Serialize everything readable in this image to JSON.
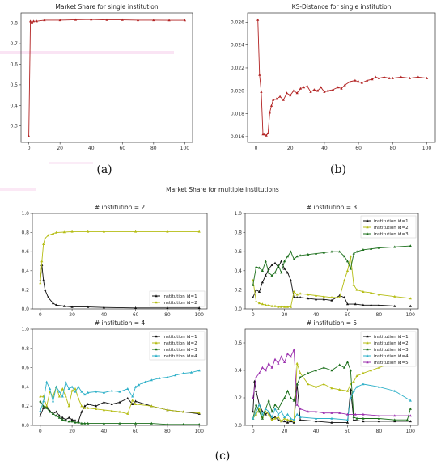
{
  "captions": {
    "a": "(a)",
    "b": "(b)",
    "c": "(c)"
  },
  "section_title": "Market Share for multiple institutions",
  "chart_data": [
    {
      "id": "a",
      "type": "line",
      "title": "Market Share for single institution",
      "xlim": [
        -5,
        105
      ],
      "ylim": [
        0.22,
        0.85
      ],
      "xticks": [
        0,
        20,
        40,
        60,
        80,
        100
      ],
      "yticks": [
        0.3,
        0.4,
        0.5,
        0.6,
        0.7,
        0.8
      ],
      "tick_decimals": 1,
      "series": [
        {
          "color": "#b22222",
          "x": [
            0,
            1,
            2,
            3,
            5,
            10,
            20,
            30,
            40,
            50,
            60,
            70,
            80,
            90,
            100
          ],
          "y": [
            0.25,
            0.81,
            0.8,
            0.81,
            0.81,
            0.815,
            0.815,
            0.817,
            0.818,
            0.816,
            0.816,
            0.815,
            0.815,
            0.814,
            0.814
          ]
        }
      ]
    },
    {
      "id": "b",
      "type": "line",
      "title": "KS-Distance for single institution",
      "xlim": [
        -5,
        105
      ],
      "ylim": [
        0.0155,
        0.0268
      ],
      "xticks": [
        0,
        20,
        40,
        60,
        80,
        100
      ],
      "yticks": [
        0.016,
        0.018,
        0.02,
        0.022,
        0.024,
        0.026
      ],
      "tick_decimals": 3,
      "series": [
        {
          "color": "#b22222",
          "x": [
            1,
            2,
            3,
            4,
            5,
            6,
            7,
            8,
            9,
            10,
            12,
            14,
            16,
            18,
            20,
            22,
            24,
            26,
            28,
            30,
            32,
            34,
            36,
            38,
            40,
            42,
            45,
            48,
            50,
            52,
            55,
            58,
            60,
            62,
            65,
            68,
            70,
            72,
            75,
            78,
            80,
            85,
            90,
            95,
            100
          ],
          "y": [
            0.0262,
            0.0214,
            0.0199,
            0.0162,
            0.0162,
            0.0161,
            0.0163,
            0.0181,
            0.0187,
            0.0192,
            0.0193,
            0.0195,
            0.0192,
            0.0198,
            0.0196,
            0.02,
            0.0198,
            0.0202,
            0.0203,
            0.0204,
            0.0199,
            0.0201,
            0.02,
            0.0203,
            0.0199,
            0.02,
            0.0201,
            0.0203,
            0.0202,
            0.0205,
            0.0208,
            0.0209,
            0.0208,
            0.0207,
            0.0209,
            0.021,
            0.0212,
            0.0211,
            0.0212,
            0.0211,
            0.0211,
            0.0212,
            0.0211,
            0.0212,
            0.0211
          ]
        }
      ]
    },
    {
      "id": "c1",
      "type": "line",
      "title": "# institution = 2",
      "xlim": [
        -5,
        105
      ],
      "ylim": [
        0,
        1.0
      ],
      "xticks": [
        0,
        20,
        40,
        60,
        80,
        100
      ],
      "yticks": [
        0.0,
        0.2,
        0.4,
        0.6,
        0.8,
        1.0
      ],
      "tick_decimals": 1,
      "legend": "lower-right",
      "series": [
        {
          "name": "institution id=1",
          "color": "#111111",
          "x": [
            0,
            1,
            2,
            3,
            5,
            8,
            10,
            15,
            20,
            30,
            40,
            60,
            80,
            100
          ],
          "y": [
            0.3,
            0.46,
            0.3,
            0.2,
            0.12,
            0.06,
            0.04,
            0.03,
            0.02,
            0.02,
            0.015,
            0.01,
            0.01,
            0.01
          ]
        },
        {
          "name": "institution id=2",
          "color": "#b5bd14",
          "x": [
            0,
            1,
            2,
            3,
            5,
            8,
            10,
            15,
            20,
            30,
            40,
            60,
            80,
            100
          ],
          "y": [
            0.27,
            0.5,
            0.68,
            0.74,
            0.77,
            0.79,
            0.8,
            0.805,
            0.81,
            0.81,
            0.81,
            0.81,
            0.81,
            0.81
          ]
        }
      ]
    },
    {
      "id": "c2",
      "type": "line",
      "title": "# institution = 3",
      "xlim": [
        -5,
        105
      ],
      "ylim": [
        0,
        1.0
      ],
      "xticks": [
        0,
        20,
        40,
        60,
        80,
        100
      ],
      "yticks": [
        0.0,
        0.2,
        0.4,
        0.6,
        0.8,
        1.0
      ],
      "tick_decimals": 1,
      "legend": "top-right",
      "series": [
        {
          "name": "institution id=1",
          "color": "#111111",
          "x": [
            0,
            2,
            4,
            6,
            8,
            10,
            12,
            14,
            16,
            18,
            20,
            22,
            24,
            26,
            28,
            30,
            35,
            40,
            45,
            50,
            55,
            58,
            60,
            65,
            70,
            75,
            80,
            90,
            100
          ],
          "y": [
            0.12,
            0.2,
            0.18,
            0.28,
            0.35,
            0.42,
            0.46,
            0.48,
            0.44,
            0.5,
            0.42,
            0.38,
            0.3,
            0.12,
            0.12,
            0.12,
            0.11,
            0.1,
            0.1,
            0.09,
            0.14,
            0.12,
            0.05,
            0.05,
            0.04,
            0.04,
            0.04,
            0.03,
            0.03
          ]
        },
        {
          "name": "institution id=2",
          "color": "#b5bd14",
          "x": [
            0,
            2,
            4,
            6,
            8,
            10,
            12,
            14,
            16,
            18,
            20,
            22,
            24,
            26,
            28,
            30,
            35,
            40,
            45,
            50,
            55,
            58,
            60,
            62,
            64,
            66,
            70,
            75,
            80,
            90,
            100
          ],
          "y": [
            0.3,
            0.08,
            0.06,
            0.05,
            0.04,
            0.04,
            0.03,
            0.03,
            0.02,
            0.02,
            0.02,
            0.02,
            0.02,
            0.18,
            0.15,
            0.16,
            0.15,
            0.14,
            0.13,
            0.12,
            0.12,
            0.3,
            0.4,
            0.55,
            0.25,
            0.2,
            0.18,
            0.17,
            0.15,
            0.13,
            0.11
          ]
        },
        {
          "name": "institution id=3",
          "color": "#1a6e1a",
          "x": [
            0,
            2,
            4,
            6,
            8,
            10,
            12,
            14,
            16,
            18,
            20,
            22,
            24,
            26,
            28,
            30,
            35,
            40,
            45,
            50,
            55,
            58,
            60,
            62,
            64,
            66,
            70,
            75,
            80,
            90,
            100
          ],
          "y": [
            0.25,
            0.44,
            0.43,
            0.4,
            0.5,
            0.38,
            0.35,
            0.38,
            0.46,
            0.38,
            0.5,
            0.55,
            0.6,
            0.52,
            0.55,
            0.56,
            0.57,
            0.58,
            0.59,
            0.6,
            0.6,
            0.55,
            0.5,
            0.42,
            0.58,
            0.6,
            0.62,
            0.63,
            0.64,
            0.65,
            0.66
          ]
        }
      ]
    },
    {
      "id": "c3",
      "type": "line",
      "title": "# institution = 4",
      "xlim": [
        -5,
        105
      ],
      "ylim": [
        0,
        1.0
      ],
      "xticks": [
        0,
        20,
        40,
        60,
        80,
        100
      ],
      "yticks": [
        0.0,
        0.2,
        0.4,
        0.6,
        0.8,
        1.0
      ],
      "tick_decimals": 1,
      "legend": "top-right",
      "series": [
        {
          "name": "institution id=1",
          "color": "#111111",
          "x": [
            0,
            2,
            4,
            6,
            8,
            10,
            12,
            14,
            16,
            18,
            20,
            22,
            24,
            26,
            28,
            30,
            35,
            40,
            45,
            50,
            55,
            58,
            60,
            70,
            80,
            90,
            100
          ],
          "y": [
            0.1,
            0.18,
            0.2,
            0.15,
            0.12,
            0.14,
            0.1,
            0.08,
            0.06,
            0.08,
            0.06,
            0.05,
            0.04,
            0.14,
            0.2,
            0.22,
            0.2,
            0.24,
            0.22,
            0.24,
            0.28,
            0.22,
            0.25,
            0.2,
            0.16,
            0.14,
            0.12
          ]
        },
        {
          "name": "institution id=2",
          "color": "#b5bd14",
          "x": [
            0,
            2,
            4,
            6,
            8,
            10,
            12,
            14,
            16,
            18,
            20,
            22,
            24,
            26,
            28,
            30,
            35,
            40,
            45,
            50,
            55,
            58,
            60,
            70,
            80,
            90,
            100
          ],
          "y": [
            0.3,
            0.3,
            0.2,
            0.35,
            0.3,
            0.4,
            0.3,
            0.38,
            0.3,
            0.2,
            0.36,
            0.38,
            0.28,
            0.2,
            0.18,
            0.18,
            0.17,
            0.16,
            0.15,
            0.14,
            0.12,
            0.26,
            0.22,
            0.2,
            0.16,
            0.14,
            0.13
          ]
        },
        {
          "name": "institution id=3",
          "color": "#1a6e1a",
          "x": [
            0,
            2,
            4,
            6,
            8,
            10,
            12,
            14,
            16,
            18,
            20,
            22,
            24,
            26,
            28,
            30,
            40,
            50,
            60,
            70,
            80,
            90,
            100
          ],
          "y": [
            0.25,
            0.2,
            0.18,
            0.14,
            0.12,
            0.1,
            0.08,
            0.06,
            0.05,
            0.04,
            0.04,
            0.03,
            0.03,
            0.02,
            0.02,
            0.02,
            0.02,
            0.02,
            0.02,
            0.02,
            0.01,
            0.01,
            0.01
          ]
        },
        {
          "name": "institution id=4",
          "color": "#2eb0c8",
          "x": [
            0,
            2,
            4,
            6,
            8,
            10,
            12,
            14,
            16,
            18,
            20,
            22,
            24,
            26,
            28,
            30,
            35,
            40,
            45,
            50,
            55,
            58,
            60,
            62,
            64,
            66,
            70,
            75,
            80,
            85,
            90,
            95,
            100
          ],
          "y": [
            0.15,
            0.25,
            0.45,
            0.38,
            0.25,
            0.4,
            0.35,
            0.3,
            0.45,
            0.38,
            0.4,
            0.35,
            0.4,
            0.35,
            0.32,
            0.34,
            0.35,
            0.34,
            0.36,
            0.35,
            0.38,
            0.3,
            0.4,
            0.42,
            0.44,
            0.45,
            0.47,
            0.49,
            0.5,
            0.52,
            0.54,
            0.55,
            0.57
          ]
        }
      ]
    },
    {
      "id": "c4",
      "type": "line",
      "title": "# institution = 5",
      "xlim": [
        -5,
        105
      ],
      "ylim": [
        0,
        0.7
      ],
      "xticks": [
        0,
        20,
        40,
        60,
        80,
        100
      ],
      "yticks": [
        0.0,
        0.2,
        0.4,
        0.6
      ],
      "tick_decimals": 1,
      "legend": "top-right",
      "series": [
        {
          "name": "institution id=1",
          "color": "#111111",
          "x": [
            0,
            1,
            2,
            4,
            6,
            8,
            10,
            12,
            14,
            16,
            18,
            20,
            22,
            24,
            26,
            28,
            30,
            40,
            50,
            60,
            62,
            64,
            70,
            80,
            90,
            100
          ],
          "y": [
            0.1,
            0.32,
            0.25,
            0.15,
            0.1,
            0.08,
            0.1,
            0.05,
            0.06,
            0.04,
            0.03,
            0.03,
            0.02,
            0.03,
            0.02,
            0.3,
            0.04,
            0.03,
            0.02,
            0.02,
            0.26,
            0.04,
            0.03,
            0.03,
            0.03,
            0.03
          ]
        },
        {
          "name": "institution id=2",
          "color": "#b5bd14",
          "x": [
            0,
            2,
            4,
            6,
            8,
            10,
            12,
            14,
            16,
            18,
            20,
            22,
            24,
            26,
            28,
            30,
            35,
            40,
            45,
            50,
            55,
            60,
            62,
            64,
            66,
            70,
            75,
            80,
            85,
            90,
            95,
            98,
            100
          ],
          "y": [
            0.05,
            0.08,
            0.12,
            0.06,
            0.1,
            0.08,
            0.04,
            0.05,
            0.06,
            0.03,
            0.05,
            0.04,
            0.04,
            0.03,
            0.45,
            0.38,
            0.3,
            0.28,
            0.3,
            0.27,
            0.26,
            0.25,
            0.3,
            0.32,
            0.36,
            0.38,
            0.4,
            0.42,
            0.44,
            0.46,
            0.48,
            0.5,
            0.44
          ]
        },
        {
          "name": "institution id=3",
          "color": "#1a6e1a",
          "x": [
            0,
            2,
            4,
            6,
            8,
            10,
            12,
            14,
            16,
            18,
            20,
            22,
            24,
            26,
            28,
            30,
            35,
            40,
            45,
            50,
            55,
            58,
            60,
            62,
            64,
            66,
            70,
            80,
            90,
            98,
            100
          ],
          "y": [
            0.05,
            0.15,
            0.1,
            0.05,
            0.12,
            0.18,
            0.1,
            0.15,
            0.12,
            0.16,
            0.2,
            0.25,
            0.2,
            0.18,
            0.3,
            0.35,
            0.38,
            0.4,
            0.42,
            0.4,
            0.44,
            0.42,
            0.46,
            0.4,
            0.06,
            0.05,
            0.05,
            0.05,
            0.04,
            0.04,
            0.12
          ]
        },
        {
          "name": "institution id=4",
          "color": "#2eb0c8",
          "x": [
            0,
            2,
            4,
            6,
            8,
            10,
            12,
            14,
            16,
            18,
            20,
            22,
            24,
            26,
            28,
            30,
            40,
            50,
            60,
            62,
            64,
            66,
            70,
            80,
            90,
            100
          ],
          "y": [
            0.05,
            0.1,
            0.15,
            0.08,
            0.12,
            0.1,
            0.06,
            0.12,
            0.08,
            0.1,
            0.06,
            0.08,
            0.05,
            0.04,
            0.08,
            0.06,
            0.05,
            0.05,
            0.04,
            0.2,
            0.25,
            0.28,
            0.3,
            0.28,
            0.25,
            0.18
          ]
        },
        {
          "name": "institution id=5",
          "color": "#9b2fae",
          "x": [
            0,
            2,
            4,
            6,
            8,
            10,
            12,
            14,
            16,
            18,
            20,
            22,
            24,
            26,
            28,
            30,
            35,
            40,
            45,
            50,
            55,
            60,
            65,
            70,
            80,
            90,
            100
          ],
          "y": [
            0.2,
            0.35,
            0.38,
            0.42,
            0.4,
            0.45,
            0.42,
            0.48,
            0.45,
            0.5,
            0.46,
            0.52,
            0.5,
            0.55,
            0.15,
            0.12,
            0.1,
            0.1,
            0.09,
            0.09,
            0.09,
            0.08,
            0.08,
            0.08,
            0.07,
            0.07,
            0.07
          ]
        }
      ]
    }
  ]
}
